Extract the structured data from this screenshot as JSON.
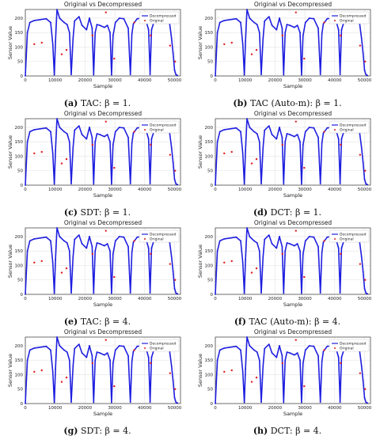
{
  "figure": {
    "panels": [
      {
        "label": "(a)",
        "caption": "TAC: β = 1.",
        "beta": 1,
        "method": "TAC"
      },
      {
        "label": "(b)",
        "caption": "TAC (Auto-m): β = 1.",
        "beta": 1,
        "method": "TAC (Auto-m)"
      },
      {
        "label": "(c)",
        "caption": "SDT: β = 1.",
        "beta": 1,
        "method": "SDT"
      },
      {
        "label": "(d)",
        "caption": "DCT: β = 1.",
        "beta": 1,
        "method": "DCT"
      },
      {
        "label": "(e)",
        "caption": "TAC: β = 4.",
        "beta": 4,
        "method": "TAC"
      },
      {
        "label": "(f)",
        "caption": "TAC (Auto-m): β = 4.",
        "beta": 4,
        "method": "TAC (Auto-m)"
      },
      {
        "label": "(g)",
        "caption": "SDT: β = 4.",
        "beta": 4,
        "method": "SDT"
      },
      {
        "label": "(h)",
        "caption": "DCT: β = 4.",
        "beta": 4,
        "method": "DCT"
      }
    ]
  },
  "chart_data": {
    "type": "line",
    "title": "Original vs Decompressed",
    "xlabel": "Sample",
    "ylabel": "Sensor Value",
    "xlim": [
      0,
      52000
    ],
    "ylim": [
      0,
      230
    ],
    "xticks": [
      0,
      10000,
      20000,
      30000,
      40000,
      50000
    ],
    "xtick_labels": [
      "0",
      "10000",
      "20000",
      "30000",
      "40000",
      "50000"
    ],
    "yticks": [
      0,
      50,
      100,
      150,
      200
    ],
    "ytick_labels": [
      "0",
      "50",
      "100",
      "150",
      "200"
    ],
    "grid": true,
    "legend": {
      "placement": "top-right",
      "entries": [
        "Decompressed",
        "Original"
      ]
    },
    "colors": {
      "Decompressed": "#1f1fe0",
      "Original": "#e02020"
    },
    "series": [
      {
        "name": "Decompressed",
        "x": [
          0,
          700,
          1500,
          3000,
          5000,
          7000,
          8500,
          9200,
          9700,
          10100,
          10600,
          11500,
          13000,
          14000,
          14800,
          15400,
          16000,
          16500,
          18000,
          19000,
          20500,
          21500,
          22400,
          22900,
          23400,
          24000,
          25000,
          26500,
          27500,
          28400,
          28900,
          29400,
          30200,
          31500,
          33000,
          34500,
          35200,
          35700,
          36200,
          37500,
          39000,
          40500,
          41300,
          41800,
          42300,
          43500,
          45000,
          46500,
          47500,
          48300,
          49000,
          49500,
          50000,
          50500,
          51000
        ],
        "y": [
          0,
          150,
          185,
          192,
          195,
          198,
          185,
          110,
          4,
          120,
          230,
          200,
          185,
          178,
          150,
          5,
          130,
          190,
          205,
          175,
          160,
          200,
          165,
          4,
          150,
          178,
          175,
          168,
          175,
          150,
          4,
          140,
          185,
          200,
          198,
          165,
          5,
          145,
          180,
          198,
          200,
          188,
          160,
          5,
          160,
          200,
          198,
          195,
          190,
          185,
          130,
          80,
          20,
          4,
          2
        ]
      },
      {
        "name": "Original",
        "x": [
          3000,
          5500,
          12200,
          13800,
          22500,
          27000,
          29800,
          36500,
          42000,
          48500,
          50200
        ],
        "y": [
          110,
          115,
          75,
          90,
          140,
          220,
          60,
          185,
          140,
          105,
          50
        ]
      }
    ]
  }
}
